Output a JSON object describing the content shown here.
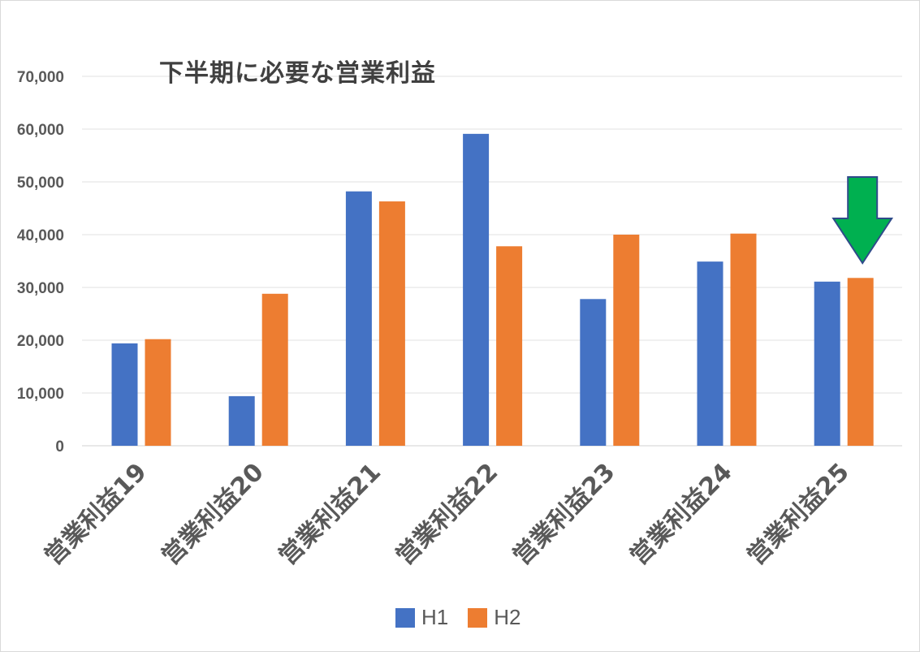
{
  "chart_data": {
    "type": "bar",
    "title": "下半期に必要な営業利益",
    "categories": [
      "営業利益19",
      "営業利益20",
      "営業利益21",
      "営業利益22",
      "営業利益23",
      "営業利益24",
      "営業利益25"
    ],
    "series": [
      {
        "name": "H1",
        "color": "#4472c4",
        "values": [
          19400,
          9400,
          48200,
          59100,
          27800,
          34900,
          31100
        ]
      },
      {
        "name": "H2",
        "color": "#ed7d31",
        "values": [
          20200,
          28800,
          46300,
          37800,
          40000,
          40200,
          31800
        ]
      }
    ],
    "ylim": [
      0,
      70000
    ],
    "yticks": [
      0,
      10000,
      20000,
      30000,
      40000,
      50000,
      60000,
      70000
    ],
    "ytick_labels": [
      "0",
      "10,000",
      "20,000",
      "30,000",
      "40,000",
      "50,000",
      "60,000",
      "70,000"
    ],
    "grid": true,
    "legend": "bottom",
    "annotation": {
      "type": "down-arrow",
      "color": "#00b050",
      "category": "営業利益25"
    }
  }
}
